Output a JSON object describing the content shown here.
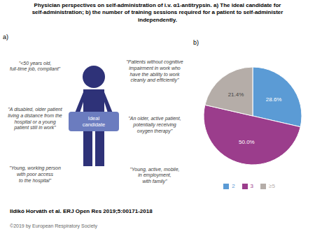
{
  "chart_data": {
    "type": "pie",
    "title": "Physician perspectives on self-administration of i.v. α1-antitrypsin. a) The ideal candidate for\nself-administration; b) the number of training sessions required for a patient to self-administer\nindependently.",
    "categories": [
      "2",
      "3",
      "≥5"
    ],
    "values": [
      28.6,
      50.0,
      21.4
    ],
    "value_labels": [
      "28.6%",
      "50.0%",
      "21.4%"
    ],
    "colors": [
      "#5b9bd5",
      "#9b3d8c",
      "#b5ada8"
    ],
    "data_labels": true,
    "legend": "bottom",
    "annotations": [
      "a)",
      "Ideal\ncandidate",
      "\"<50 years old,\nfull-time job, compliant\"",
      "\"A disabled, older patient\nliving a distance from the\nhospital or a young\npatient still in work\"",
      "\"Young, working person\nwith poor access\nto the hospital\"",
      "\"Patients without cognitive\nimpairment in work who\nhave the ability to work\ncleanly and efficiently\"",
      "\"An older, active patient,\npotentially receiving\noxygen therapy\"",
      "\"Young, active, mobile,\nin employment,\nwith family\"",
      "b)",
      "Ildikó Horváth et al. ERJ Open Res 2019;5:00171-2018",
      "©2019 by European Respiratory Society"
    ]
  }
}
